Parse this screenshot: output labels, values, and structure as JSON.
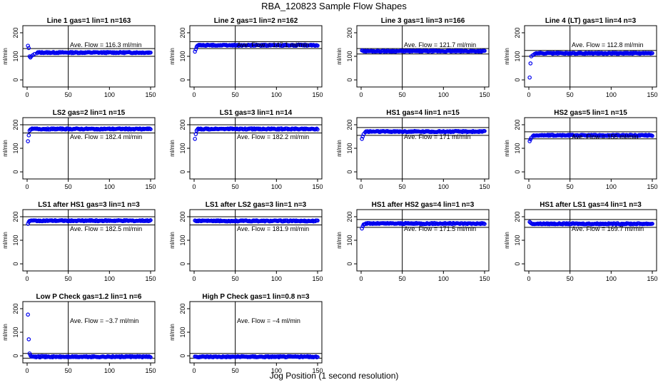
{
  "title": "RBA_120823  Sample Flow Shapes",
  "xlabel": "Jog Position (1 second resolution)",
  "colors": {
    "points": "#0000ee",
    "axes": "#000000",
    "background": "#ffffff"
  },
  "chart_data": [
    {
      "type": "scatter",
      "title": "Line 1 gas=1 lin=1 n=163",
      "ylabel": "ml/min",
      "annotation": "Ave. Flow =  116.3  ml/min",
      "ave_flow": 116.3,
      "xlim": [
        0,
        150
      ],
      "ylim": [
        0,
        200
      ],
      "xticks": [
        0,
        50,
        100,
        150
      ],
      "yticks": [
        0,
        100,
        200
      ],
      "ref_lines_y": [
        100,
        133
      ],
      "vline_x": 50,
      "steady_y": 116,
      "points": [
        [
          1,
          145
        ],
        [
          2,
          135
        ],
        [
          3,
          100
        ],
        [
          4,
          95
        ],
        [
          5,
          100
        ],
        [
          7,
          105
        ],
        [
          9,
          110
        ],
        [
          12,
          113
        ]
      ]
    },
    {
      "type": "scatter",
      "title": "Line 2 gas=1 lin=2 n=162",
      "ylabel": "ml/min",
      "annotation": "Ave. Flow =  147.1  ml/min",
      "ave_flow": 147.1,
      "xlim": [
        0,
        150
      ],
      "ylim": [
        0,
        200
      ],
      "xticks": [
        0,
        50,
        100,
        150
      ],
      "yticks": [
        0,
        100,
        200
      ],
      "ref_lines_y": [
        133,
        162
      ],
      "vline_x": 50,
      "steady_y": 147,
      "points": [
        [
          1,
          120
        ],
        [
          2,
          130
        ],
        [
          3,
          140
        ],
        [
          4,
          145
        ]
      ]
    },
    {
      "type": "scatter",
      "title": "Line 3 gas=1 lin=3 n=166",
      "ylabel": "ml/min",
      "annotation": "Ave. Flow =  121.7  ml/min",
      "ave_flow": 121.7,
      "xlim": [
        0,
        150
      ],
      "ylim": [
        0,
        200
      ],
      "xticks": [
        0,
        50,
        100,
        150
      ],
      "yticks": [
        0,
        100,
        200
      ],
      "ref_lines_y": [
        110,
        133
      ],
      "vline_x": 50,
      "steady_y": 122,
      "points": [
        [
          1,
          125
        ],
        [
          2,
          124
        ]
      ]
    },
    {
      "type": "scatter",
      "title": "Line 4 (LT) gas=1 lin=4 n=3",
      "ylabel": "ml/min",
      "annotation": "Ave. Flow =  112.8  ml/min",
      "ave_flow": 112.8,
      "xlim": [
        0,
        150
      ],
      "ylim": [
        0,
        200
      ],
      "xticks": [
        0,
        50,
        100,
        150
      ],
      "yticks": [
        0,
        100,
        200
      ],
      "ref_lines_y": [
        100,
        125
      ],
      "vline_x": 50,
      "steady_y": 113,
      "points": [
        [
          1,
          10
        ],
        [
          2,
          70
        ],
        [
          3,
          100
        ],
        [
          5,
          105
        ],
        [
          7,
          110
        ]
      ]
    },
    {
      "type": "scatter",
      "title": "LS2 gas=2 lin=1 n=15",
      "ylabel": "ml/min",
      "annotation": "Ave. Flow =  182.4  ml/min",
      "ave_flow": 182.4,
      "xlim": [
        0,
        150
      ],
      "ylim": [
        0,
        200
      ],
      "xticks": [
        0,
        50,
        100,
        150
      ],
      "yticks": [
        0,
        100,
        200
      ],
      "ref_lines_y": [
        165,
        200
      ],
      "vline_x": 50,
      "steady_y": 182,
      "points": [
        [
          1,
          130
        ],
        [
          2,
          155
        ],
        [
          3,
          175
        ],
        [
          4,
          180
        ]
      ]
    },
    {
      "type": "scatter",
      "title": "LS1 gas=3 lin=1 n=14",
      "ylabel": "ml/min",
      "annotation": "Ave. Flow =  182.2  ml/min",
      "ave_flow": 182.2,
      "xlim": [
        0,
        150
      ],
      "ylim": [
        0,
        200
      ],
      "xticks": [
        0,
        50,
        100,
        150
      ],
      "yticks": [
        0,
        100,
        200
      ],
      "ref_lines_y": [
        165,
        200
      ],
      "vline_x": 50,
      "steady_y": 182,
      "points": [
        [
          1,
          140
        ],
        [
          2,
          160
        ],
        [
          3,
          175
        ],
        [
          4,
          180
        ]
      ]
    },
    {
      "type": "scatter",
      "title": "HS1 gas=4 lin=1 n=15",
      "ylabel": "ml/min",
      "annotation": "Ave. Flow =  171  ml/min",
      "ave_flow": 171,
      "xlim": [
        0,
        150
      ],
      "ylim": [
        0,
        200
      ],
      "xticks": [
        0,
        50,
        100,
        150
      ],
      "yticks": [
        0,
        100,
        200
      ],
      "ref_lines_y": [
        155,
        188
      ],
      "vline_x": 50,
      "steady_y": 171,
      "points": [
        [
          1,
          140
        ],
        [
          2,
          150
        ],
        [
          3,
          160
        ],
        [
          5,
          168
        ]
      ]
    },
    {
      "type": "scatter",
      "title": "HS2 gas=5 lin=1 n=15",
      "ylabel": "ml/min",
      "annotation": "Ave. Flow =  155  ml/min",
      "ave_flow": 155,
      "xlim": [
        0,
        150
      ],
      "ylim": [
        0,
        200
      ],
      "xticks": [
        0,
        50,
        100,
        150
      ],
      "yticks": [
        0,
        100,
        200
      ],
      "ref_lines_y": [
        140,
        170
      ],
      "vline_x": 50,
      "steady_y": 155,
      "points": [
        [
          1,
          130
        ],
        [
          2,
          138
        ],
        [
          3,
          145
        ],
        [
          5,
          152
        ]
      ]
    },
    {
      "type": "scatter",
      "title": "LS1 after HS1 gas=3 lin=1 n=3",
      "ylabel": "ml/min",
      "annotation": "Ave. Flow =  182.5  ml/min",
      "ave_flow": 182.5,
      "xlim": [
        0,
        150
      ],
      "ylim": [
        0,
        200
      ],
      "xticks": [
        0,
        50,
        100,
        150
      ],
      "yticks": [
        0,
        100,
        200
      ],
      "ref_lines_y": [
        165,
        200
      ],
      "vline_x": 50,
      "steady_y": 183,
      "points": [
        [
          1,
          170
        ],
        [
          2,
          178
        ]
      ]
    },
    {
      "type": "scatter",
      "title": "LS1 after LS2 gas=3 lin=1 n=3",
      "ylabel": "ml/min",
      "annotation": "Ave. Flow =  181.9  ml/min",
      "ave_flow": 181.9,
      "xlim": [
        0,
        150
      ],
      "ylim": [
        0,
        200
      ],
      "xticks": [
        0,
        50,
        100,
        150
      ],
      "yticks": [
        0,
        100,
        200
      ],
      "ref_lines_y": [
        165,
        200
      ],
      "vline_x": 50,
      "steady_y": 182,
      "points": [
        [
          1,
          184
        ],
        [
          2,
          182
        ]
      ]
    },
    {
      "type": "scatter",
      "title": "HS1 after HS2 gas=4 lin=1 n=3",
      "ylabel": "ml/min",
      "annotation": "Ave. Flow =  171.5  ml/min",
      "ave_flow": 171.5,
      "xlim": [
        0,
        150
      ],
      "ylim": [
        0,
        200
      ],
      "xticks": [
        0,
        50,
        100,
        150
      ],
      "yticks": [
        0,
        100,
        200
      ],
      "ref_lines_y": [
        155,
        188
      ],
      "vline_x": 50,
      "steady_y": 171,
      "points": [
        [
          1,
          150
        ],
        [
          2,
          160
        ],
        [
          3,
          167
        ]
      ]
    },
    {
      "type": "scatter",
      "title": "HS1 after LS1 gas=4 lin=1 n=3",
      "ylabel": "ml/min",
      "annotation": "Ave. Flow =  169.7  ml/min",
      "ave_flow": 169.7,
      "xlim": [
        0,
        150
      ],
      "ylim": [
        0,
        200
      ],
      "xticks": [
        0,
        50,
        100,
        150
      ],
      "yticks": [
        0,
        100,
        200
      ],
      "ref_lines_y": [
        155,
        188
      ],
      "vline_x": 50,
      "steady_y": 170,
      "points": [
        [
          1,
          178
        ],
        [
          2,
          175
        ]
      ]
    },
    {
      "type": "scatter",
      "title": "Low P Check gas=1.2 lin=1 n=6",
      "ylabel": "ml/min",
      "annotation": "Ave. Flow =  −3.7  ml/min",
      "ave_flow": -3.7,
      "xlim": [
        0,
        150
      ],
      "ylim": [
        0,
        200
      ],
      "xticks": [
        0,
        50,
        100,
        150
      ],
      "yticks": [
        0,
        100,
        200
      ],
      "ref_lines_y": [
        -10,
        10
      ],
      "vline_x": 50,
      "steady_y": -4,
      "points": [
        [
          1,
          175
        ],
        [
          2,
          70
        ],
        [
          3,
          10
        ],
        [
          4,
          2
        ]
      ]
    },
    {
      "type": "scatter",
      "title": "High P Check gas=1 lin=0.8 n=3",
      "ylabel": "ml/min",
      "annotation": "Ave. Flow =  −4  ml/min",
      "ave_flow": -4,
      "xlim": [
        0,
        150
      ],
      "ylim": [
        0,
        200
      ],
      "xticks": [
        0,
        50,
        100,
        150
      ],
      "yticks": [
        0,
        100,
        200
      ],
      "ref_lines_y": [
        -10,
        10
      ],
      "vline_x": 50,
      "steady_y": -4,
      "points": [
        [
          1,
          -3
        ],
        [
          2,
          -4
        ]
      ]
    }
  ]
}
